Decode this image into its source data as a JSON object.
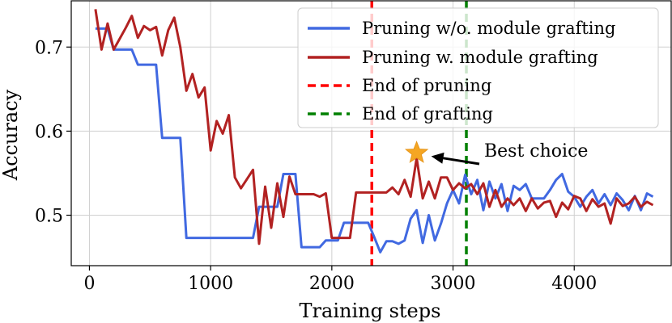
{
  "chart_data": {
    "type": "line",
    "title": "",
    "xlabel": "Training steps",
    "ylabel": "Accuracy",
    "xlim": [
      -150,
      4800
    ],
    "ylim": [
      0.44,
      0.755
    ],
    "xticks": [
      0,
      1000,
      2000,
      3000,
      4000
    ],
    "yticks": [
      0.5,
      0.6,
      0.7
    ],
    "grid": true,
    "legend_position": "top-right",
    "series": [
      {
        "name": "Pruning w/o. module grafting",
        "color": "#4169E1",
        "x": [
          50,
          100,
          150,
          200,
          250,
          300,
          350,
          400,
          450,
          500,
          550,
          600,
          650,
          700,
          750,
          800,
          850,
          900,
          950,
          1000,
          1050,
          1100,
          1150,
          1200,
          1250,
          1300,
          1350,
          1400,
          1450,
          1500,
          1550,
          1600,
          1650,
          1700,
          1750,
          1800,
          1850,
          1900,
          1950,
          2000,
          2050,
          2100,
          2150,
          2200,
          2250,
          2300,
          2350,
          2400,
          2450,
          2500,
          2550,
          2600,
          2650,
          2700,
          2750,
          2800,
          2850,
          2900,
          2950,
          3000,
          3050,
          3100,
          3150,
          3200,
          3250,
          3300,
          3350,
          3400,
          3450,
          3500,
          3550,
          3600,
          3650,
          3700,
          3750,
          3800,
          3850,
          3900,
          3950,
          4000,
          4050,
          4100,
          4150,
          4200,
          4250,
          4300,
          4350,
          4400,
          4450,
          4500,
          4550,
          4600,
          4650
        ],
        "y": [
          0.722,
          0.722,
          0.722,
          0.697,
          0.697,
          0.697,
          0.697,
          0.679,
          0.679,
          0.679,
          0.679,
          0.592,
          0.592,
          0.592,
          0.592,
          0.473,
          0.473,
          0.473,
          0.473,
          0.473,
          0.473,
          0.473,
          0.473,
          0.473,
          0.473,
          0.473,
          0.473,
          0.51,
          0.51,
          0.51,
          0.51,
          0.549,
          0.549,
          0.549,
          0.462,
          0.462,
          0.462,
          0.462,
          0.47,
          0.47,
          0.47,
          0.491,
          0.491,
          0.491,
          0.491,
          0.491,
          0.474,
          0.456,
          0.469,
          0.469,
          0.466,
          0.47,
          0.496,
          0.506,
          0.467,
          0.5,
          0.47,
          0.49,
          0.514,
          0.53,
          0.514,
          0.548,
          0.525,
          0.542,
          0.506,
          0.54,
          0.52,
          0.537,
          0.505,
          0.535,
          0.53,
          0.537,
          0.52,
          0.52,
          0.52,
          0.53,
          0.542,
          0.549,
          0.528,
          0.522,
          0.51,
          0.522,
          0.53,
          0.514,
          0.525,
          0.512,
          0.526,
          0.518,
          0.506,
          0.523,
          0.506,
          0.526,
          0.522
        ]
      },
      {
        "name": "Pruning w. module grafting",
        "color": "#B22222",
        "x": [
          50,
          100,
          150,
          200,
          250,
          300,
          350,
          400,
          450,
          500,
          550,
          600,
          650,
          700,
          750,
          800,
          850,
          900,
          950,
          1000,
          1050,
          1100,
          1150,
          1200,
          1250,
          1300,
          1350,
          1400,
          1450,
          1500,
          1550,
          1600,
          1650,
          1700,
          1750,
          1800,
          1850,
          1900,
          1950,
          2000,
          2050,
          2100,
          2150,
          2200,
          2250,
          2300,
          2350,
          2400,
          2450,
          2500,
          2550,
          2600,
          2650,
          2700,
          2750,
          2800,
          2850,
          2900,
          2950,
          3000,
          3050,
          3100,
          3150,
          3200,
          3250,
          3300,
          3350,
          3400,
          3450,
          3500,
          3550,
          3600,
          3650,
          3700,
          3750,
          3800,
          3850,
          3900,
          3950,
          4000,
          4050,
          4100,
          4150,
          4200,
          4250,
          4300,
          4350,
          4400,
          4450,
          4500,
          4550,
          4600,
          4650
        ],
        "y": [
          0.745,
          0.697,
          0.728,
          0.697,
          0.71,
          0.723,
          0.737,
          0.711,
          0.725,
          0.72,
          0.724,
          0.69,
          0.72,
          0.735,
          0.7,
          0.648,
          0.668,
          0.64,
          0.652,
          0.577,
          0.612,
          0.597,
          0.619,
          0.545,
          0.532,
          0.543,
          0.554,
          0.466,
          0.534,
          0.485,
          0.538,
          0.498,
          0.546,
          0.525,
          0.525,
          0.525,
          0.525,
          0.522,
          0.526,
          0.473,
          0.473,
          0.473,
          0.473,
          0.527,
          0.527,
          0.527,
          0.527,
          0.527,
          0.527,
          0.533,
          0.525,
          0.542,
          0.522,
          0.568,
          0.52,
          0.54,
          0.52,
          0.545,
          0.545,
          0.53,
          0.538,
          0.532,
          0.537,
          0.525,
          0.538,
          0.51,
          0.53,
          0.51,
          0.52,
          0.512,
          0.52,
          0.505,
          0.52,
          0.508,
          0.515,
          0.517,
          0.498,
          0.515,
          0.507,
          0.523,
          0.52,
          0.505,
          0.519,
          0.51,
          0.514,
          0.49,
          0.52,
          0.511,
          0.514,
          0.522,
          0.51,
          0.516,
          0.512
        ]
      }
    ],
    "vlines": [
      {
        "name": "End of pruning",
        "x": 2330,
        "color": "#FF0000",
        "style": "dashed"
      },
      {
        "name": "End of grafting",
        "x": 3110,
        "color": "#008000",
        "style": "dashed"
      }
    ],
    "annotation": {
      "text": "Best choice",
      "x": 2700,
      "y": 0.574,
      "marker": "star",
      "marker_color": "#F5A623"
    }
  }
}
